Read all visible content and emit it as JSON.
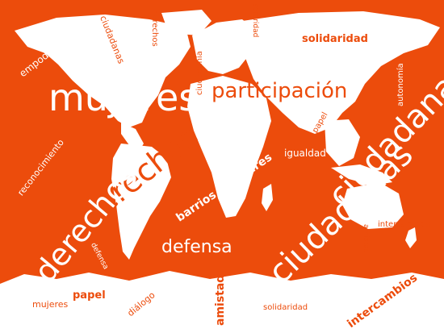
{
  "colors": {
    "accent": "#ec4c0c",
    "land": "#ffffff"
  },
  "words": {
    "empoderamiento": "empoderamiento",
    "ciudadanas_top": "ciudadanas",
    "derechos_top": "derechos",
    "ciudad_vert": "ciudadanía",
    "sororidad": "sororidad",
    "solidaridad_top": "solidaridad",
    "mujeres_big": "mujeres",
    "participacion": "participación",
    "autonomia": "autonomía",
    "papel_small": "papel",
    "igualdad": "igualdad",
    "reconocimiento": "reconocimiento",
    "derechos_mid": "derechos",
    "barrios_populares": "barrios populares",
    "ciudadanas_right": "ciudadanas",
    "intercambios_small": "intercambios",
    "amistad_small": "amistad",
    "derechos_big": "derechos",
    "defensa_big": "defensa",
    "defensa_small": "defensa",
    "ciudadanas_big": "ciudadanas",
    "mujeres_bottom": "mujeres",
    "papel_bottom": "papel",
    "dialogo": "diálogo",
    "amistad_bottom": "amistad",
    "solidaridad_bottom": "solidaridad",
    "intercambios_bottom": "intercambios"
  }
}
